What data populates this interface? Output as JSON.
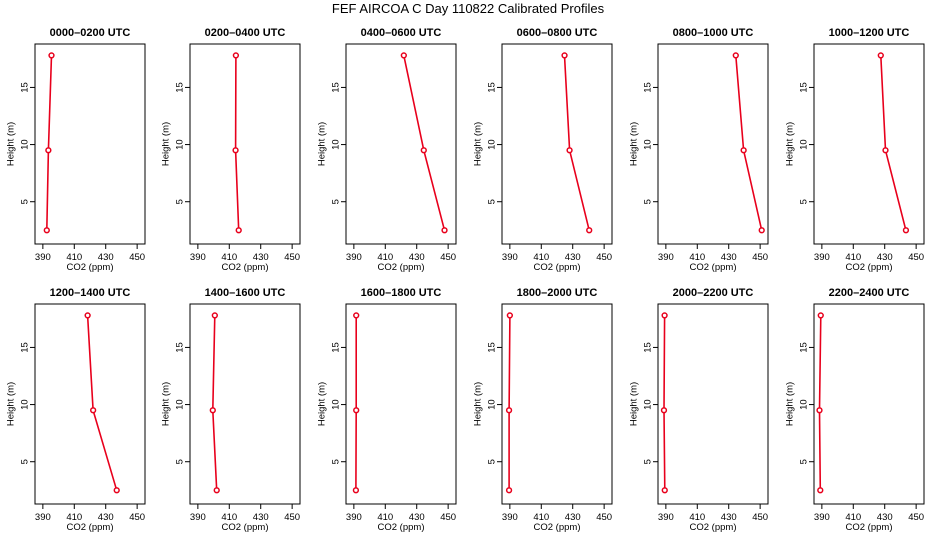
{
  "title": "FEF AIRCOA C  Day 110822  Calibrated Profiles",
  "colors": {
    "series": "#e8001c",
    "axis": "#000000"
  },
  "chart_data": [
    {
      "type": "line",
      "title": "0000–0200 UTC",
      "xlabel": "CO2 (ppm)",
      "ylabel": "Height (m)",
      "xlim": [
        385,
        455
      ],
      "ylim": [
        1.3,
        18.8
      ],
      "xticks": [
        390,
        410,
        430,
        450
      ],
      "yticks": [
        5,
        10,
        15
      ],
      "series": [
        {
          "x": [
            392.5,
            393.5,
            395.5
          ],
          "y": [
            2.5,
            9.5,
            17.8
          ]
        }
      ]
    },
    {
      "type": "line",
      "title": "0200–0400 UTC",
      "xlabel": "CO2 (ppm)",
      "ylabel": "Height (m)",
      "xlim": [
        385,
        455
      ],
      "ylim": [
        1.3,
        18.8
      ],
      "xticks": [
        390,
        410,
        430,
        450
      ],
      "yticks": [
        5,
        10,
        15
      ],
      "series": [
        {
          "x": [
            416.0,
            414.0,
            414.2
          ],
          "y": [
            2.5,
            9.5,
            17.8
          ]
        }
      ]
    },
    {
      "type": "line",
      "title": "0400–0600 UTC",
      "xlabel": "CO2 (ppm)",
      "ylabel": "Height (m)",
      "xlim": [
        385,
        455
      ],
      "ylim": [
        1.3,
        18.8
      ],
      "xticks": [
        390,
        410,
        430,
        450
      ],
      "yticks": [
        5,
        10,
        15
      ],
      "series": [
        {
          "x": [
            447.7,
            434.5,
            421.8
          ],
          "y": [
            2.5,
            9.5,
            17.8
          ]
        }
      ]
    },
    {
      "type": "line",
      "title": "0600–0800 UTC",
      "xlabel": "CO2 (ppm)",
      "ylabel": "Height (m)",
      "xlim": [
        385,
        455
      ],
      "ylim": [
        1.3,
        18.8
      ],
      "xticks": [
        390,
        410,
        430,
        450
      ],
      "yticks": [
        5,
        10,
        15
      ],
      "series": [
        {
          "x": [
            440.5,
            428.0,
            424.8
          ],
          "y": [
            2.5,
            9.5,
            17.8
          ]
        }
      ]
    },
    {
      "type": "line",
      "title": "0800–1000 UTC",
      "xlabel": "CO2 (ppm)",
      "ylabel": "Height (m)",
      "xlim": [
        385,
        455
      ],
      "ylim": [
        1.3,
        18.8
      ],
      "xticks": [
        390,
        410,
        430,
        450
      ],
      "yticks": [
        5,
        10,
        15
      ],
      "series": [
        {
          "x": [
            451.0,
            439.5,
            434.5
          ],
          "y": [
            2.5,
            9.5,
            17.8
          ]
        }
      ]
    },
    {
      "type": "line",
      "title": "1000–1200 UTC",
      "xlabel": "CO2 (ppm)",
      "ylabel": "Height (m)",
      "xlim": [
        385,
        455
      ],
      "ylim": [
        1.3,
        18.8
      ],
      "xticks": [
        390,
        410,
        430,
        450
      ],
      "yticks": [
        5,
        10,
        15
      ],
      "series": [
        {
          "x": [
            443.5,
            430.5,
            427.5
          ],
          "y": [
            2.5,
            9.5,
            17.8
          ]
        }
      ]
    },
    {
      "type": "line",
      "title": "1200–1400 UTC",
      "xlabel": "CO2 (ppm)",
      "ylabel": "Height (m)",
      "xlim": [
        385,
        455
      ],
      "ylim": [
        1.3,
        18.8
      ],
      "xticks": [
        390,
        410,
        430,
        450
      ],
      "yticks": [
        5,
        10,
        15
      ],
      "series": [
        {
          "x": [
            437.0,
            422.0,
            418.5
          ],
          "y": [
            2.5,
            9.5,
            17.8
          ]
        }
      ]
    },
    {
      "type": "line",
      "title": "1400–1600 UTC",
      "xlabel": "CO2 (ppm)",
      "ylabel": "Height (m)",
      "xlim": [
        385,
        455
      ],
      "ylim": [
        1.3,
        18.8
      ],
      "xticks": [
        390,
        410,
        430,
        450
      ],
      "yticks": [
        5,
        10,
        15
      ],
      "series": [
        {
          "x": [
            402.0,
            399.5,
            400.8
          ],
          "y": [
            2.5,
            9.5,
            17.8
          ]
        }
      ]
    },
    {
      "type": "line",
      "title": "1600–1800 UTC",
      "xlabel": "CO2 (ppm)",
      "ylabel": "Height (m)",
      "xlim": [
        385,
        455
      ],
      "ylim": [
        1.3,
        18.8
      ],
      "xticks": [
        390,
        410,
        430,
        450
      ],
      "yticks": [
        5,
        10,
        15
      ],
      "series": [
        {
          "x": [
            391.3,
            391.5,
            391.5
          ],
          "y": [
            2.5,
            9.5,
            17.8
          ]
        }
      ]
    },
    {
      "type": "line",
      "title": "1800–2000 UTC",
      "xlabel": "CO2 (ppm)",
      "ylabel": "Height (m)",
      "xlim": [
        385,
        455
      ],
      "ylim": [
        1.3,
        18.8
      ],
      "xticks": [
        390,
        410,
        430,
        450
      ],
      "yticks": [
        5,
        10,
        15
      ],
      "series": [
        {
          "x": [
            389.5,
            389.5,
            390.0
          ],
          "y": [
            2.5,
            9.5,
            17.8
          ]
        }
      ]
    },
    {
      "type": "line",
      "title": "2000–2200 UTC",
      "xlabel": "CO2 (ppm)",
      "ylabel": "Height (m)",
      "xlim": [
        385,
        455
      ],
      "ylim": [
        1.3,
        18.8
      ],
      "xticks": [
        390,
        410,
        430,
        450
      ],
      "yticks": [
        5,
        10,
        15
      ],
      "series": [
        {
          "x": [
            389.3,
            388.8,
            389.2
          ],
          "y": [
            2.5,
            9.5,
            17.8
          ]
        }
      ]
    },
    {
      "type": "line",
      "title": "2200–2400 UTC",
      "xlabel": "CO2 (ppm)",
      "ylabel": "Height (m)",
      "xlim": [
        385,
        455
      ],
      "ylim": [
        1.3,
        18.8
      ],
      "xticks": [
        390,
        410,
        430,
        450
      ],
      "yticks": [
        5,
        10,
        15
      ],
      "series": [
        {
          "x": [
            389.0,
            388.5,
            389.3
          ],
          "y": [
            2.5,
            9.5,
            17.8
          ]
        }
      ]
    }
  ]
}
